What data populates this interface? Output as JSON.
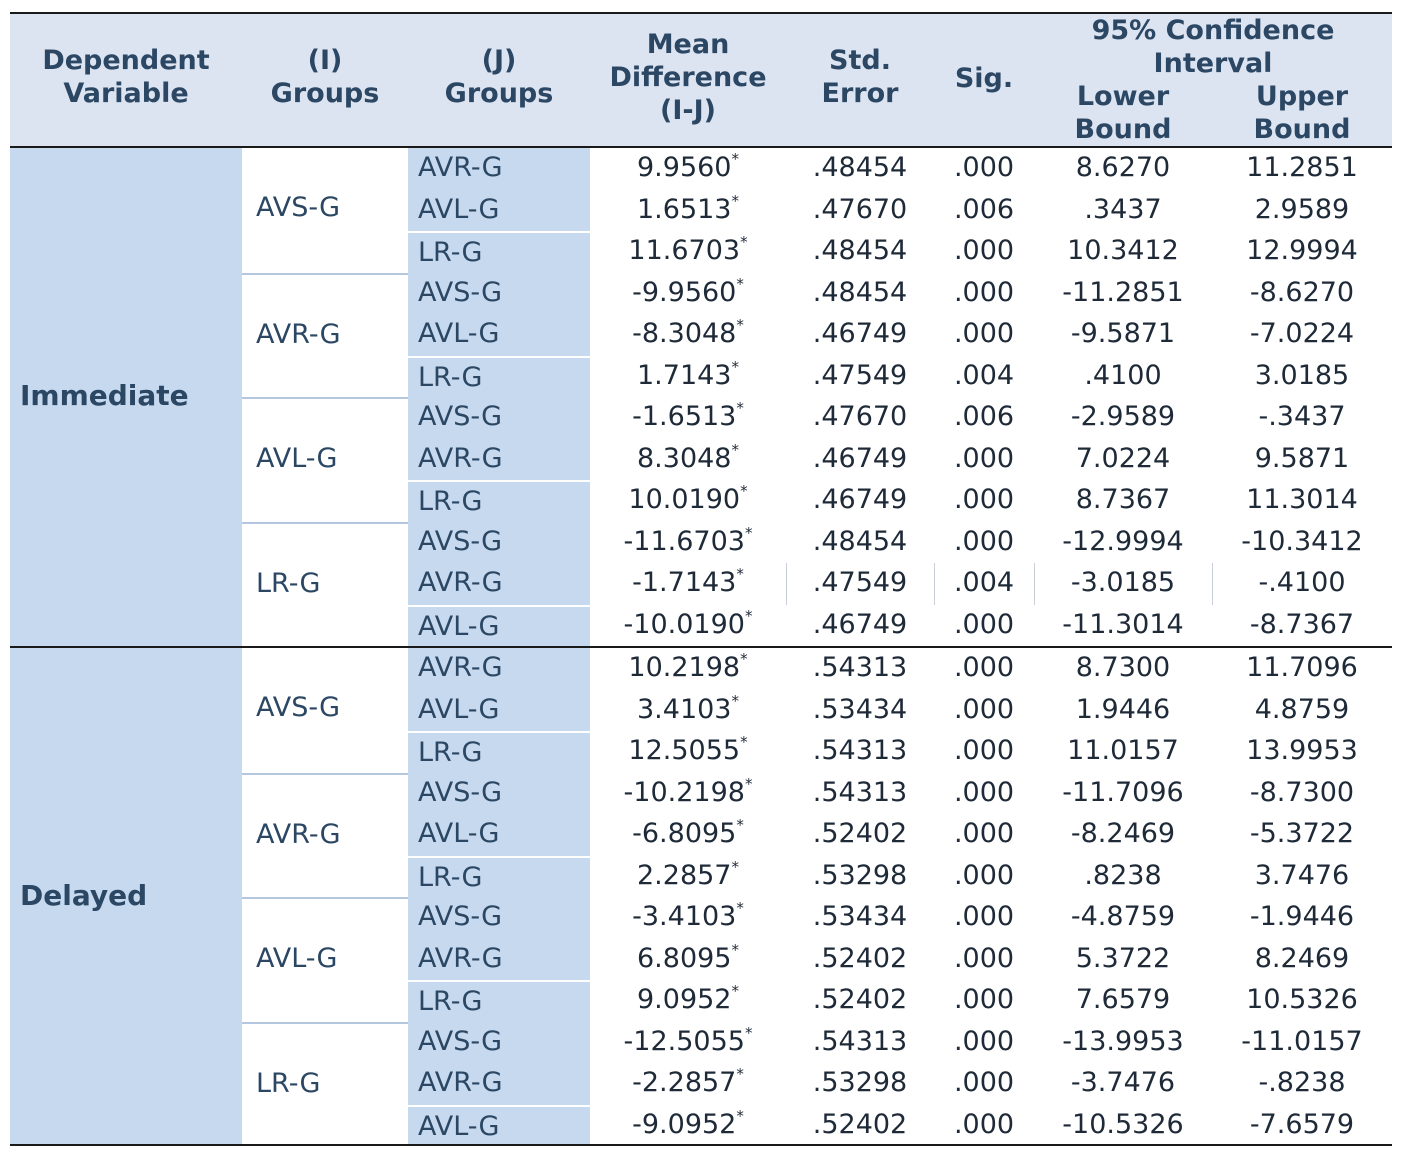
{
  "headers": {
    "dependent_variable": "Dependent\nVariable",
    "i_groups": "(I)\nGroups",
    "j_groups": "(J)\nGroups",
    "mean_difference": "Mean\nDifference\n(I-J)",
    "std_error": "Std.\nError",
    "sig": "Sig.",
    "ci": "95% Confidence\nInterval",
    "lower_bound": "Lower\nBound",
    "upper_bound": "Upper\nBound"
  },
  "sections": [
    {
      "dependent_variable": "Immediate",
      "groups": [
        {
          "i": "AVS-G",
          "rows": [
            {
              "j": "AVR-G",
              "md": "9.9560",
              "star": "*",
              "se": ".48454",
              "sig": ".000",
              "lower": "8.6270",
              "upper": "11.2851"
            },
            {
              "j": "AVL-G",
              "md": "1.6513",
              "star": "*",
              "se": ".47670",
              "sig": ".006",
              "lower": ".3437",
              "upper": "2.9589"
            },
            {
              "j": "LR-G",
              "md": "11.6703",
              "star": "*",
              "se": ".48454",
              "sig": ".000",
              "lower": "10.3412",
              "upper": "12.9994"
            }
          ]
        },
        {
          "i": "AVR-G",
          "rows": [
            {
              "j": "AVS-G",
              "md": "-9.9560",
              "star": "*",
              "se": ".48454",
              "sig": ".000",
              "lower": "-11.2851",
              "upper": "-8.6270"
            },
            {
              "j": "AVL-G",
              "md": "-8.3048",
              "star": "*",
              "se": ".46749",
              "sig": ".000",
              "lower": "-9.5871",
              "upper": "-7.0224"
            },
            {
              "j": "LR-G",
              "md": "1.7143",
              "star": "*",
              "se": ".47549",
              "sig": ".004",
              "lower": ".4100",
              "upper": "3.0185"
            }
          ]
        },
        {
          "i": "AVL-G",
          "rows": [
            {
              "j": "AVS-G",
              "md": "-1.6513",
              "star": "*",
              "se": ".47670",
              "sig": ".006",
              "lower": "-2.9589",
              "upper": "-.3437"
            },
            {
              "j": "AVR-G",
              "md": "8.3048",
              "star": "*",
              "se": ".46749",
              "sig": ".000",
              "lower": "7.0224",
              "upper": "9.5871"
            },
            {
              "j": "LR-G",
              "md": "10.0190",
              "star": "*",
              "se": ".46749",
              "sig": ".000",
              "lower": "8.7367",
              "upper": "11.3014"
            }
          ]
        },
        {
          "i": "LR-G",
          "rows": [
            {
              "j": "AVS-G",
              "md": "-11.6703",
              "star": "*",
              "se": ".48454",
              "sig": ".000",
              "lower": "-12.9994",
              "upper": "-10.3412"
            },
            {
              "j": "AVR-G",
              "md": "-1.7143",
              "star": "*",
              "se": ".47549",
              "sig": ".004",
              "lower": "-3.0185",
              "upper": "-.4100"
            },
            {
              "j": "AVL-G",
              "md": "-10.0190",
              "star": "*",
              "se": ".46749",
              "sig": ".000",
              "lower": "-11.3014",
              "upper": "-8.7367"
            }
          ]
        }
      ]
    },
    {
      "dependent_variable": "Delayed",
      "groups": [
        {
          "i": "AVS-G",
          "rows": [
            {
              "j": "AVR-G",
              "md": "10.2198",
              "star": "*",
              "se": ".54313",
              "sig": ".000",
              "lower": "8.7300",
              "upper": "11.7096"
            },
            {
              "j": "AVL-G",
              "md": "3.4103",
              "star": "*",
              "se": ".53434",
              "sig": ".000",
              "lower": "1.9446",
              "upper": "4.8759"
            },
            {
              "j": "LR-G",
              "md": "12.5055",
              "star": "*",
              "se": ".54313",
              "sig": ".000",
              "lower": "11.0157",
              "upper": "13.9953"
            }
          ]
        },
        {
          "i": "AVR-G",
          "rows": [
            {
              "j": "AVS-G",
              "md": "-10.2198",
              "star": "*",
              "se": ".54313",
              "sig": ".000",
              "lower": "-11.7096",
              "upper": "-8.7300"
            },
            {
              "j": "AVL-G",
              "md": "-6.8095",
              "star": "*",
              "se": ".52402",
              "sig": ".000",
              "lower": "-8.2469",
              "upper": "-5.3722"
            },
            {
              "j": "LR-G",
              "md": "2.2857",
              "star": "*",
              "se": ".53298",
              "sig": ".000",
              "lower": ".8238",
              "upper": "3.7476"
            }
          ]
        },
        {
          "i": "AVL-G",
          "rows": [
            {
              "j": "AVS-G",
              "md": "-3.4103",
              "star": "*",
              "se": ".53434",
              "sig": ".000",
              "lower": "-4.8759",
              "upper": "-1.9446"
            },
            {
              "j": "AVR-G",
              "md": "6.8095",
              "star": "*",
              "se": ".52402",
              "sig": ".000",
              "lower": "5.3722",
              "upper": "8.2469"
            },
            {
              "j": "LR-G",
              "md": "9.0952",
              "star": "*",
              "se": ".52402",
              "sig": ".000",
              "lower": "7.6579",
              "upper": "10.5326"
            }
          ]
        },
        {
          "i": "LR-G",
          "rows": [
            {
              "j": "AVS-G",
              "md": "-12.5055",
              "star": "*",
              "se": ".54313",
              "sig": ".000",
              "lower": "-13.9953",
              "upper": "-11.0157"
            },
            {
              "j": "AVR-G",
              "md": "-2.2857",
              "star": "*",
              "se": ".53298",
              "sig": ".000",
              "lower": "-3.7476",
              "upper": "-.8238"
            },
            {
              "j": "AVL-G",
              "md": "-9.0952",
              "star": "*",
              "se": ".52402",
              "sig": ".000",
              "lower": "-10.5326",
              "upper": "-7.6579"
            }
          ]
        }
      ]
    }
  ]
}
